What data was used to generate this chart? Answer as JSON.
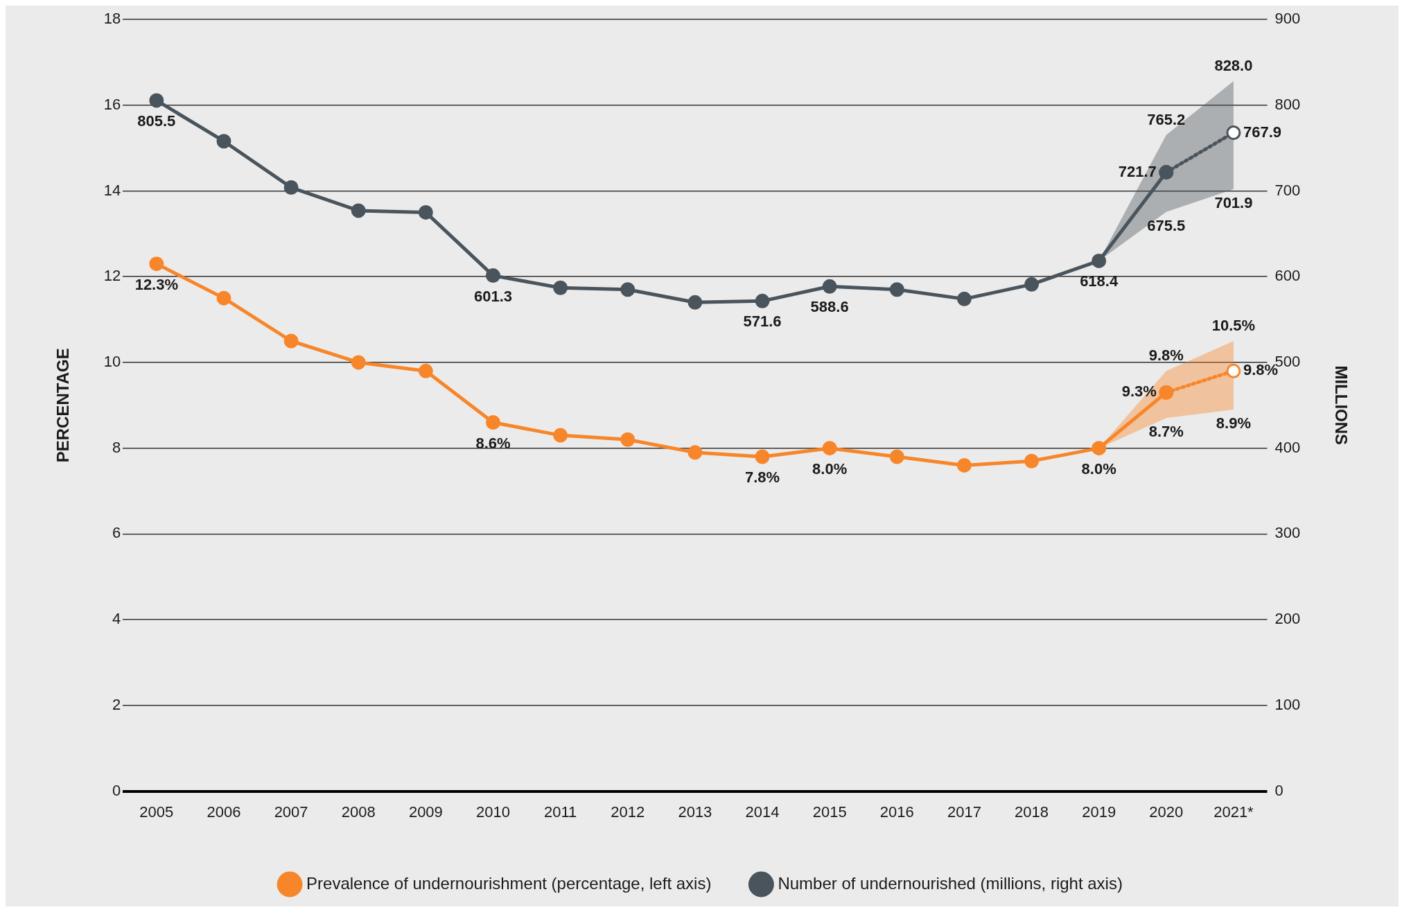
{
  "chart_data": {
    "type": "line",
    "categories": [
      "2005",
      "2006",
      "2007",
      "2008",
      "2009",
      "2010",
      "2011",
      "2012",
      "2013",
      "2014",
      "2015",
      "2016",
      "2017",
      "2018",
      "2019",
      "2020",
      "2021*"
    ],
    "ylabel": "PERCENTAGE",
    "y2label": "MILLIONS",
    "ylim": [
      0,
      18
    ],
    "yticks": [
      0,
      2,
      4,
      6,
      8,
      10,
      12,
      14,
      16,
      18
    ],
    "y2lim": [
      0,
      900
    ],
    "y2ticks": [
      0,
      100,
      200,
      300,
      400,
      500,
      600,
      700,
      800,
      900
    ],
    "grid": "y",
    "legend": "bottom",
    "marker": "circle",
    "series": [
      {
        "name": "Prevalence of undernourishment (percentage, left axis)",
        "color": "#f7862a",
        "values": [
          12.3,
          11.5,
          10.5,
          10.0,
          9.8,
          8.6,
          8.3,
          8.2,
          7.9,
          7.8,
          8.0,
          7.8,
          7.6,
          7.7,
          8.0,
          9.3,
          null
        ],
        "lower": [
          null,
          null,
          null,
          null,
          null,
          null,
          null,
          null,
          null,
          null,
          null,
          null,
          null,
          null,
          8.0,
          8.7,
          8.9
        ],
        "upper": [
          null,
          null,
          null,
          null,
          null,
          null,
          null,
          null,
          null,
          null,
          null,
          null,
          null,
          null,
          8.0,
          9.8,
          10.5
        ],
        "value_labels": [
          "12.3%",
          null,
          null,
          null,
          null,
          "8.6%",
          null,
          null,
          null,
          "7.8%",
          "8.0%",
          null,
          null,
          null,
          "8.0%",
          "9.3%",
          null
        ]
      },
      {
        "color": "#f7862a",
        "line_style": "dotted",
        "values": [
          null,
          null,
          null,
          null,
          null,
          null,
          null,
          null,
          null,
          null,
          null,
          null,
          null,
          null,
          null,
          9.3,
          9.8
        ],
        "value_labels": [
          null,
          null,
          null,
          null,
          null,
          null,
          null,
          null,
          null,
          null,
          null,
          null,
          null,
          null,
          null,
          null,
          "9.8%"
        ]
      },
      {
        "name": "Number of undernourished (millions, right axis)",
        "color": "#4a545c",
        "axis": "y2",
        "values": [
          805.5,
          758,
          704,
          677,
          675,
          601.3,
          587,
          585,
          570,
          571.6,
          588.6,
          585,
          574,
          591,
          618.4,
          721.7,
          null
        ],
        "lower": [
          null,
          null,
          null,
          null,
          null,
          null,
          null,
          null,
          null,
          null,
          null,
          null,
          null,
          null,
          618.4,
          675.5,
          701.9
        ],
        "upper": [
          null,
          null,
          null,
          null,
          null,
          null,
          null,
          null,
          null,
          null,
          null,
          null,
          null,
          null,
          618.4,
          765.2,
          828.0
        ],
        "value_labels": [
          "805.5",
          null,
          null,
          null,
          null,
          "601.3",
          null,
          null,
          null,
          "571.6",
          "588.6",
          null,
          null,
          null,
          "618.4",
          "721.7",
          null
        ]
      },
      {
        "color": "#4a545c",
        "axis": "y2",
        "line_style": "dotted",
        "values": [
          null,
          null,
          null,
          null,
          null,
          null,
          null,
          null,
          null,
          null,
          null,
          null,
          null,
          null,
          null,
          721.7,
          767.9
        ],
        "value_labels": [
          null,
          null,
          null,
          null,
          null,
          null,
          null,
          null,
          null,
          null,
          null,
          null,
          null,
          null,
          null,
          null,
          "767.9"
        ]
      }
    ],
    "annotations": [
      {
        "text": "9.8%",
        "x": "2020",
        "y": 9.8
      },
      {
        "text": "8.7%",
        "x": "2020",
        "y": 8.7
      },
      {
        "text": "10.5%",
        "x": "2021*",
        "y": 10.5
      },
      {
        "text": "8.9%",
        "x": "2021*",
        "y": 8.9
      },
      "765.2",
      "675.5",
      "828.0",
      "701.9"
    ]
  }
}
